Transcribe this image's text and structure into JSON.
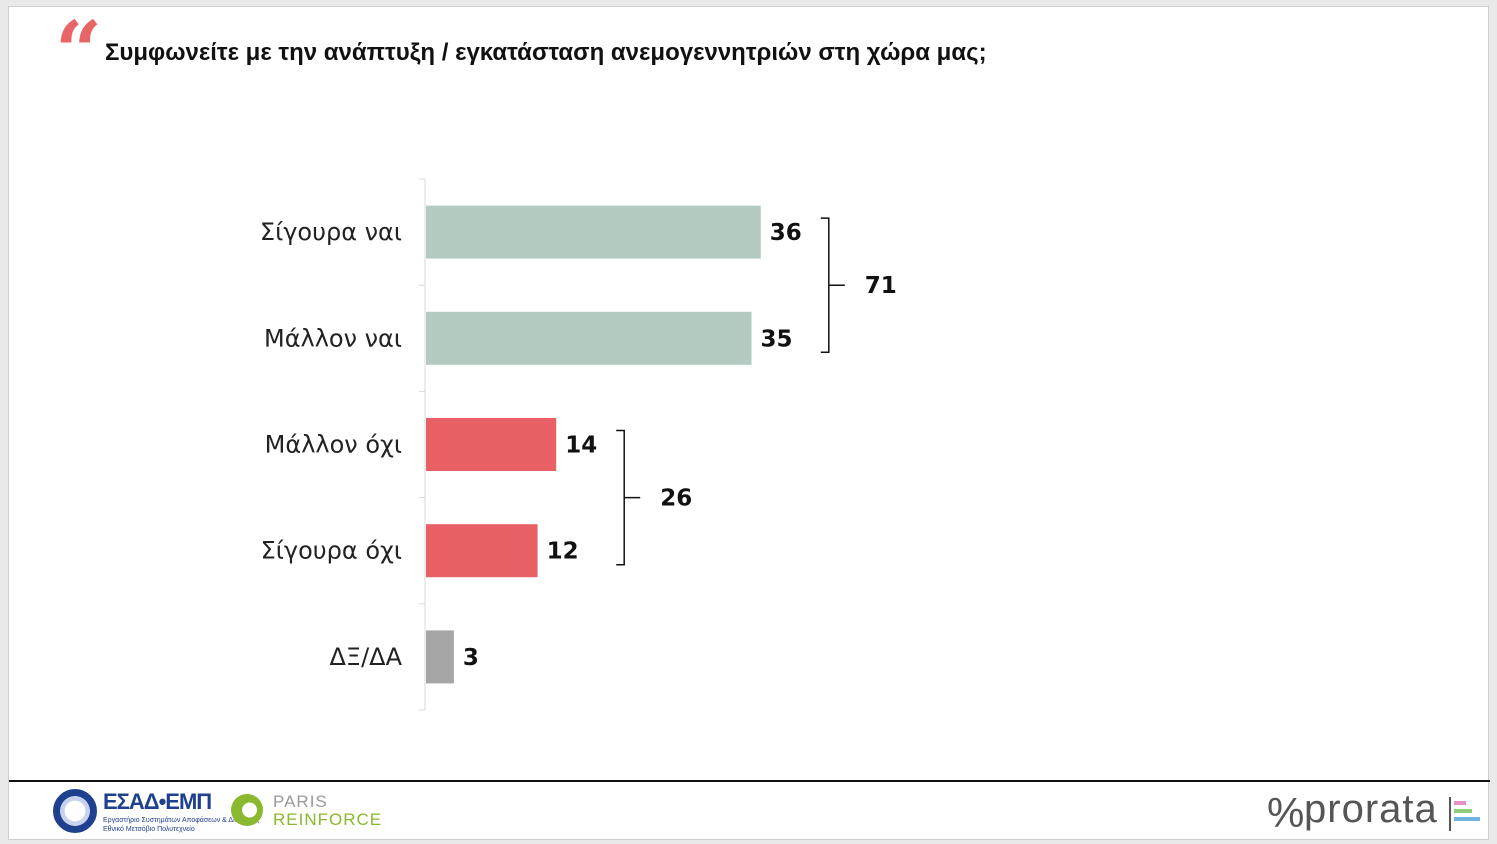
{
  "header": {
    "quote_glyph": "“",
    "title": "Συμφωνείτε με την ανάπτυξη / εγκατάσταση ανεμογεννητριών στη χώρα μας;"
  },
  "chart_data": {
    "type": "bar",
    "orientation": "horizontal",
    "title": "Συμφωνείτε με την ανάπτυξη / εγκατάσταση ανεμογεννητριών στη χώρα μας;",
    "xlabel": "",
    "ylabel": "",
    "categories": [
      "Σίγουρα ναι",
      "Μάλλον ναι",
      "Μάλλον όχι",
      "Σίγουρα όχι",
      "ΔΞ/ΔΑ"
    ],
    "values": [
      36,
      35,
      14,
      12,
      3
    ],
    "xlim": [
      0,
      100
    ],
    "grid": false,
    "colors": [
      "#b3cac0",
      "#b3cac0",
      "#e86065",
      "#e86065",
      "#a5a5a5"
    ],
    "groups": [
      {
        "from": 0,
        "to": 1,
        "total": "71"
      },
      {
        "from": 2,
        "to": 3,
        "total": "26"
      }
    ]
  },
  "footer": {
    "logo_esad": {
      "name": "ΕΣΑΔ•ΕΜΠ",
      "sub1": "Εργαστήριο Συστημάτων Αποφάσεων & Διοίκησης",
      "sub2": "Εθνικό Μετσόβιο Πολυτεχνείο"
    },
    "logo_paris": {
      "line1": "PARIS",
      "line2": "REINFORCE"
    },
    "logo_prorata": {
      "mark": "%",
      "name": "prorata",
      "stripe_colors": [
        "#e98fc7",
        "#8ccc7a",
        "#6fb4e0"
      ]
    }
  }
}
